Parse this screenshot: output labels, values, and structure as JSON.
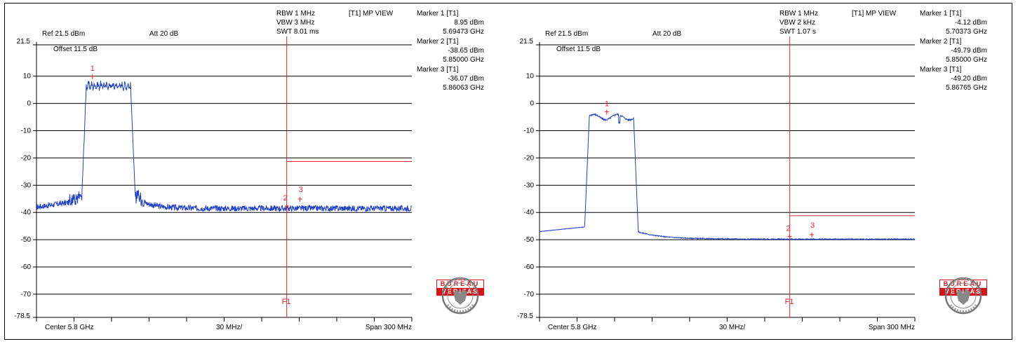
{
  "colors": {
    "trace": "#1f3fc8",
    "marker": "#e8202a",
    "grid": "#000000",
    "logo_red": "#d8121a"
  },
  "logo": {
    "icon": "bureau-veritas-seal",
    "line1": "BUREAU",
    "line2": "VERITAS"
  },
  "chart_data": [
    {
      "type": "line",
      "ref_label": "Ref 21.5 dBm",
      "att_label": "Att  20 dB",
      "offset_label": "Offset 11.5 dB",
      "rbw": "RBW 1 MHz",
      "vbw": "VBW 3 MHz",
      "swt": "SWT 8.01 ms",
      "view": "[T1] MP VIEW",
      "center_label": "Center 5.8 GHz",
      "div_label": "30 MHz/",
      "span_label": "Span 300 MHz",
      "f1_label": "F1",
      "y_top_label": "21.5",
      "y_bottom_label": "-78.5",
      "ylim": [
        -78.5,
        21.5
      ],
      "xlim": [
        5.65,
        5.95
      ],
      "yticks": [
        10,
        0,
        -10,
        -20,
        -30,
        -40,
        -50,
        -60,
        -70
      ],
      "ytick_labels": [
        "10",
        "0",
        "-10",
        "-20",
        "-30",
        "-40",
        "-50",
        "-60",
        "-70"
      ],
      "f1_x": 5.85,
      "limit_line": {
        "y": -21.3,
        "x_start": 5.85
      },
      "band": {
        "start": 5.6886,
        "end": 5.7264,
        "level": 6.5,
        "floor_left": -38,
        "floor_right": -38.5
      },
      "markers": [
        {
          "label": "Marker 1 [T1]",
          "value": "8.95 dBm",
          "freq": "5.69473 GHz",
          "num": "1",
          "x": 5.69473,
          "y": 8.95
        },
        {
          "label": "Marker 2 [T1]",
          "value": "-38.65 dBm",
          "freq": "5.85000 GHz",
          "num": "2",
          "x": 5.85,
          "y": -38.65
        },
        {
          "label": "Marker 3 [T1]",
          "value": "-36.07 dBm",
          "freq": "5.86063 GHz",
          "num": "3",
          "x": 5.86063,
          "y": -36.07
        }
      ]
    },
    {
      "type": "line",
      "ref_label": "Ref 21.5 dBm",
      "att_label": "Att  20 dB",
      "offset_label": "Offset 11.5 dB",
      "rbw": "RBW 1 MHz",
      "vbw": "VBW 2 kHz",
      "swt": "SWT 1.07 s",
      "view": "[T1] MP VIEW",
      "center_label": "Center 5.8 GHz",
      "div_label": "30 MHz/",
      "span_label": "Span 300 MHz",
      "f1_label": "F1",
      "y_top_label": "21.5",
      "y_bottom_label": "-78.5",
      "ylim": [
        -78.5,
        21.5
      ],
      "xlim": [
        5.65,
        5.95
      ],
      "yticks": [
        10,
        0,
        -10,
        -20,
        -30,
        -40,
        -50,
        -60,
        -70
      ],
      "ytick_labels": [
        "10",
        "0",
        "-10",
        "-20",
        "-30",
        "-40",
        "-50",
        "-60",
        "-70"
      ],
      "f1_x": 5.85,
      "limit_line": {
        "y": -41.2,
        "x_start": 5.85
      },
      "band": {
        "start": 5.6886,
        "end": 5.7264,
        "level": -5,
        "floor_left": -47,
        "floor_right": -49.8
      },
      "markers": [
        {
          "label": "Marker 1 [T1]",
          "value": "-4.12 dBm",
          "freq": "5.70373 GHz",
          "num": "1",
          "x": 5.70373,
          "y": -4.12
        },
        {
          "label": "Marker 2 [T1]",
          "value": "-49.79 dBm",
          "freq": "5.85000 GHz",
          "num": "2",
          "x": 5.85,
          "y": -49.79
        },
        {
          "label": "Marker 3 [T1]",
          "value": "-49.20 dBm",
          "freq": "5.86765 GHz",
          "num": "3",
          "x": 5.86765,
          "y": -49.2
        }
      ]
    }
  ]
}
